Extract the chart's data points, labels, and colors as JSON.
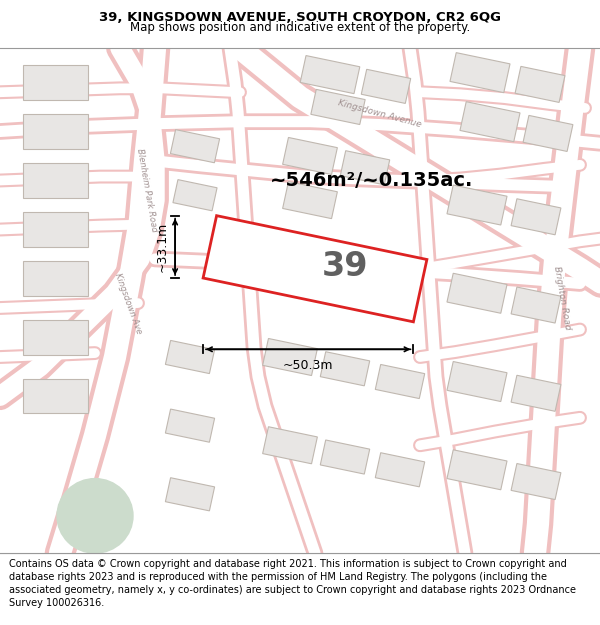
{
  "title_line1": "39, KINGSDOWN AVENUE, SOUTH CROYDON, CR2 6QG",
  "title_line2": "Map shows position and indicative extent of the property.",
  "area_text": "~546m²/~0.135ac.",
  "number_label": "39",
  "dim_width": "~50.3m",
  "dim_height": "~33.1m",
  "footer_text": "Contains OS data © Crown copyright and database right 2021. This information is subject to Crown copyright and database rights 2023 and is reproduced with the permission of HM Land Registry. The polygons (including the associated geometry, namely x, y co-ordinates) are subject to Crown copyright and database rights 2023 Ordnance Survey 100026316.",
  "bg_color": "#f7f5f2",
  "plot_fill": "#ffffff",
  "plot_edge": "#dd2222",
  "plot_edge_width": 2.0,
  "building_fill": "#e8e6e4",
  "building_edge": "#c0b8b0",
  "road_fill": "#ffffff",
  "road_edge": "#f0c0c0",
  "green_fill": "#ccdccc",
  "label_color": "#a09090",
  "title_fontsize": 9.5,
  "subtitle_fontsize": 8.5,
  "footer_fontsize": 7.0,
  "area_fontsize": 14,
  "number_fontsize": 24,
  "dim_fontsize": 9
}
